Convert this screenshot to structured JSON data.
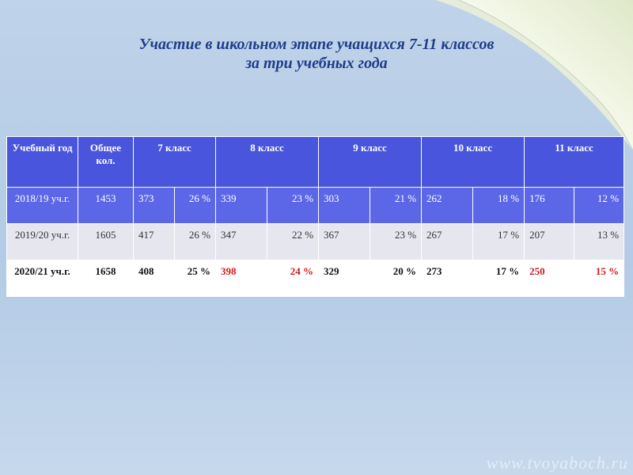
{
  "title": {
    "line1": "Участие в школьном этапе учащихся 7-11 классов",
    "line2": "за три учебных года"
  },
  "table": {
    "headers": [
      "Учебный год",
      "Общее кол.",
      "7 класс",
      "8 класс",
      "9 класс",
      "10 класс",
      "11 класс"
    ],
    "rows": [
      {
        "year": "2018/19 уч.г.",
        "total": "1453",
        "c7": "373",
        "p7": "26 %",
        "c8": "339",
        "p8": "23 %",
        "c9": "303",
        "p9": "21 %",
        "c10": "262",
        "p10": "18 %",
        "c11": "176",
        "p11": "12 %"
      },
      {
        "year": "2019/20 уч.г.",
        "total": "1605",
        "c7": "417",
        "p7": "26 %",
        "c8": "347",
        "p8": "22 %",
        "c9": "367",
        "p9": "23 %",
        "c10": "267",
        "p10": "17 %",
        "c11": "207",
        "p11": "13 %"
      },
      {
        "year": "2020/21 уч.г.",
        "total": "1658",
        "c7": "408",
        "p7": "25 %",
        "c8": "398",
        "p8": "24 %",
        "c9": "329",
        "p9": "20 %",
        "c10": "273",
        "p10": "17 %",
        "c11": "250",
        "p11": "15 %"
      }
    ]
  },
  "colors": {
    "header_bg": "#4a55dd",
    "row1_bg": "#5c67e8",
    "row2_bg": "#e6e6ee",
    "row3_bg": "#ffffff",
    "highlight": "#d01818",
    "title": "#1f3d8a"
  },
  "watermark": "www.tvoyaboch.ru"
}
